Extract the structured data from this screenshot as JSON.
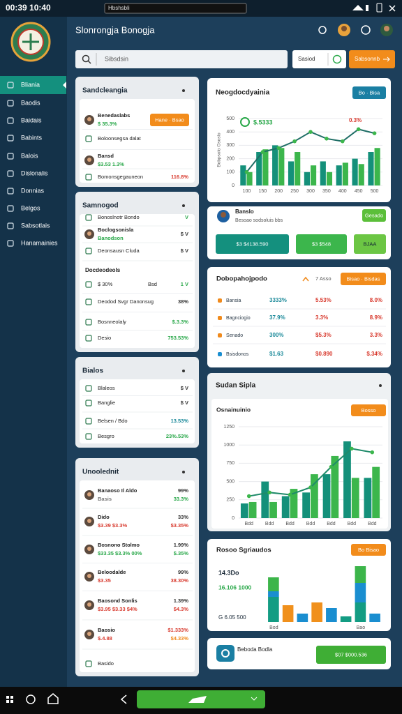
{
  "status_bar": {
    "time": "00:39 10:40",
    "address": "Hbshsbli"
  },
  "sidebar": {
    "items": [
      "Bliania",
      "Baodis",
      "Baidais",
      "Babints",
      "Balois",
      "Dislonalis",
      "Donnias",
      "Belgos",
      "Sabsotlais",
      "Hanamainies"
    ]
  },
  "header": {
    "title": "Slonrongja Bonogja",
    "search": "Sibsdsin",
    "select": "Sasiod",
    "action": "Sabsonnb"
  },
  "left_cards": [
    {
      "title": "Sandcleangia",
      "rows": [
        {
          "label": "Benedaslabs",
          "sub": "$ 35.3%",
          "button": "Hane · Bsao"
        },
        {
          "label": "Boloonsegsa dalat"
        },
        {
          "label": "Bansd",
          "sub": "$3.53 1.3%"
        },
        {
          "label": "Bomonsgegauneon",
          "value": "116.8%",
          "color": "#d83a2e"
        }
      ]
    },
    {
      "title": "Samnogod",
      "rows": [
        {
          "label": "Bonoslnotr Bondo",
          "value": "V",
          "color": "#2aa84a"
        },
        {
          "label": "Boclogsonisla",
          "sub": "Banodson",
          "value": "$ V"
        },
        {
          "label": "Deonsausn Cluda",
          "value": "$ V"
        },
        {
          "label": "Docdeodeols",
          "heading": true
        },
        {
          "label": "$ 30%",
          "mid": "Bsd",
          "value": "1 V",
          "color": "#2aa84a"
        },
        {
          "label": "Deodod Svgr Danonsug",
          "value": "38%"
        },
        {
          "label": "Bosnneolaly",
          "value": "$.3.3%",
          "color": "#2aa84a"
        },
        {
          "label": "Desio",
          "value": "753.53%",
          "color": "#2aa84a"
        }
      ]
    },
    {
      "title": "Bialos",
      "rows": [
        {
          "label": "Blaleos",
          "value": "$ V"
        },
        {
          "label": "Banglie",
          "value": "$ V"
        },
        {
          "label": "Belsen / Bdo",
          "value": "13.53%",
          "color": "#1c8a9a"
        },
        {
          "label": "Besgro",
          "value": "23%.53%",
          "color": "#2aa84a"
        }
      ]
    },
    {
      "title": "Unoolednit",
      "rows": [
        {
          "label": "Banaoso Il Aldo",
          "sub": "Basis",
          "sub_color": "#777777",
          "value": "99%",
          "sub_value": "33.3%",
          "sub_value_color": "#2aa84a"
        },
        {
          "label": "Dido",
          "sub": "$3.39 $3.3%",
          "sub_color": "#d83a2e",
          "value": "33%",
          "sub_value": "$3.35%",
          "sub_value_color": "#d83a2e"
        },
        {
          "label": "Bosnono Stolmo",
          "sub": "$33.35 $3.3% 00%",
          "sub_color": "#2aa84a",
          "value": "1.99%",
          "sub_value": "$.35%",
          "sub_value_color": "#2aa84a"
        },
        {
          "label": "Beloodalde",
          "sub": "$3.35",
          "sub_color": "#d83a2e",
          "value": "99%",
          "sub_value": "38.30%",
          "sub_value_color": "#d83a2e"
        },
        {
          "label": "Baosond Sonlis",
          "sub": "$3.95 $3.33 $4%",
          "sub_color": "#d83a2e",
          "value": "1.39%",
          "sub_value": "$4.3%",
          "sub_value_color": "#d83a2e"
        },
        {
          "label": "Baosio",
          "sub": "$.4.88",
          "sub_color": "#d83a2e",
          "value": "$1.333%",
          "color": "#d83a2e",
          "sub_value": "$4.33%",
          "sub_value_color": "#f08a1c"
        },
        {
          "label": "Basido"
        }
      ]
    }
  ],
  "trend_card": {
    "title": "Neogdocdyainia",
    "button": "Bo · Bisa",
    "axis_label": "Bobpsolo Ososlo",
    "legend_value": "$.5333",
    "legend_change": "0.3%",
    "chart": {
      "type": "bar",
      "categories": [
        "100",
        "150",
        "200",
        "250",
        "300",
        "350",
        "400",
        "450",
        "500"
      ],
      "ylim": [
        0,
        500
      ],
      "yticks": [
        0,
        100,
        200,
        300,
        400,
        500
      ],
      "series": [
        {
          "color": "#14907a",
          "values": [
            150,
            250,
            300,
            180,
            100,
            180,
            150,
            200,
            250
          ]
        },
        {
          "color": "#3cb64c",
          "values": [
            100,
            270,
            280,
            250,
            150,
            100,
            170,
            160,
            280
          ]
        },
        {
          "type": "line",
          "color": "#1f6e66",
          "marker_color": "#3cb64c",
          "values": [
            100,
            250,
            280,
            330,
            400,
            350,
            330,
            420,
            390
          ]
        }
      ]
    }
  },
  "profile_card": {
    "name": "Banslo",
    "detail": "Besoao sodsoluis bbs",
    "button": "Gesado",
    "actions": [
      "$3 $4138.590",
      "$3 $548",
      "BJAA"
    ]
  },
  "table_card": {
    "title": "Dobopahojpodo",
    "change": "7 Asso",
    "button": "Bisao · Bisdas",
    "row_colors": [
      "#f08a1c",
      "#f08a1c",
      "#f08a1c",
      "#1a8ed0"
    ],
    "column_colors": [
      "#2b3a48",
      "#1c8a9a",
      "#d83a2e",
      "#d83a2e"
    ],
    "rows": [
      [
        "Bansia",
        "3333%",
        "5.53%",
        "8.0%"
      ],
      [
        "Bagnciogio",
        "37.9%",
        "3.3%",
        "8.9%"
      ],
      [
        "Senado",
        "300%",
        "$5.3%",
        "3.3%"
      ],
      [
        "Bsisdonos",
        "$1.63",
        "$0.890",
        "$.34%"
      ]
    ]
  },
  "revenue_card": {
    "title": "Sudan Sipla",
    "subtitle": "Osnainuinio",
    "button": "Bosso",
    "chart": {
      "type": "bar",
      "categories": [
        "Bdd",
        "Bdd",
        "Bdd",
        "Bdd",
        "Bdd",
        "Bdd",
        "Bdd"
      ],
      "ylim": [
        0,
        1250
      ],
      "yticks": [
        0,
        250,
        500,
        750,
        1000,
        1250
      ],
      "series": [
        {
          "color": "#14907a",
          "values": [
            200,
            500,
            300,
            350,
            600,
            1050,
            550
          ]
        },
        {
          "color": "#3cb64c",
          "values": [
            220,
            220,
            400,
            600,
            850,
            550,
            700
          ]
        },
        {
          "type": "line",
          "color": "#1f8a6a",
          "marker_color": "#3cb64c",
          "values": [
            300,
            350,
            320,
            420,
            700,
            950,
            900
          ]
        }
      ]
    }
  },
  "stack_card": {
    "title": "Rosoo Sgriaudos",
    "button": "Bo Bisao",
    "labels": [
      "14.3Do",
      "16.106 1000",
      "G 6.05 500"
    ],
    "chart": {
      "type": "bar",
      "stacked": true,
      "categories": [
        "Bod",
        null,
        null,
        null,
        null,
        null,
        "Bao",
        null
      ],
      "ylim": [
        0,
        100
      ],
      "series": [
        {
          "color": "#139c83",
          "values": [
            45,
            0,
            0,
            0,
            0,
            10,
            35,
            0
          ]
        },
        {
          "color": "#1a8ed0",
          "values": [
            10,
            0,
            15,
            0,
            25,
            0,
            35,
            15
          ]
        },
        {
          "color": "#3cb54a",
          "values": [
            25,
            0,
            0,
            0,
            0,
            0,
            30,
            0
          ]
        },
        {
          "color": "#f0901c",
          "values": [
            0,
            30,
            0,
            35,
            0,
            0,
            0,
            0
          ]
        }
      ]
    }
  },
  "footer_card": {
    "title": "Beboda Bodla",
    "button": "$07 $000.536"
  }
}
